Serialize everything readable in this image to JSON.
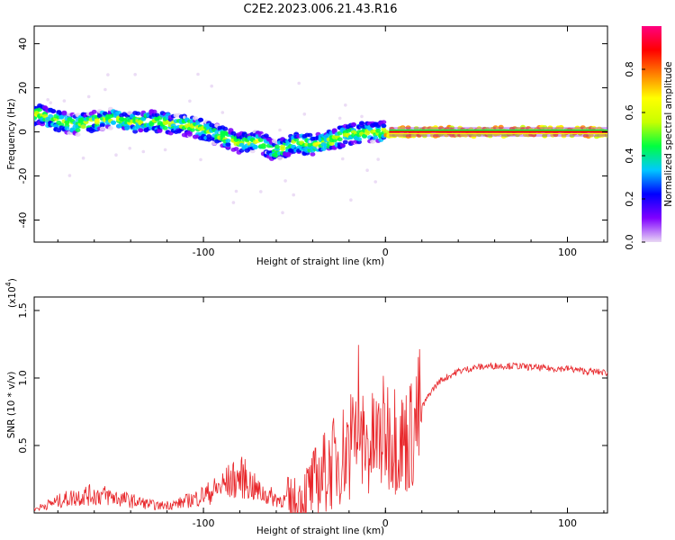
{
  "page_title": "C2E2.2023.006.21.43.R16",
  "chart_data": [
    {
      "type": "heatmap",
      "xlabel": "Height of straight line (km)",
      "ylabel": "Frequency (Hz)",
      "xlim": [
        -193,
        122
      ],
      "ylim": [
        -50,
        48
      ],
      "x_ticks": [
        -100,
        0,
        100
      ],
      "x_tick_labels": [
        "-100",
        "0",
        "100"
      ],
      "y_ticks": [
        -40,
        -20,
        0,
        20,
        40
      ],
      "y_tick_labels": [
        "-40",
        "-20",
        "0",
        "20",
        "40"
      ],
      "ridge": {
        "x": [
          -190,
          -180,
          -170,
          -160,
          -150,
          -140,
          -130,
          -120,
          -110,
          -100,
          -90,
          -80,
          -70,
          -60,
          -50,
          -40,
          -30,
          -20,
          -10,
          0,
          10,
          20,
          40,
          60,
          80,
          100,
          122
        ],
        "freq": [
          8,
          5,
          3,
          5,
          6,
          4,
          5,
          4,
          3,
          1,
          -2,
          -5,
          -4,
          -9,
          -5,
          -6,
          -4,
          -1,
          0,
          0,
          0,
          0,
          0,
          0,
          0,
          0,
          0
        ]
      },
      "colorbar": {
        "label": "Normalized spectral amplitude",
        "range": [
          0,
          1
        ],
        "ticks": [
          0.0,
          0.2,
          0.4,
          0.6,
          0.8
        ],
        "tick_labels": [
          "0.0",
          "0.2",
          "0.4",
          "0.6",
          "0.8"
        ],
        "colors": [
          "#e9d8f4",
          "#8000ff",
          "#0000ff",
          "#00c8ff",
          "#00ff40",
          "#c8ff00",
          "#ffff00",
          "#ff8000",
          "#ff0000",
          "#ff0080"
        ]
      }
    },
    {
      "type": "line",
      "xlabel": "Height of straight line (km)",
      "ylabel": "SNR (10 * v/v)",
      "y_multiplier": "(x10",
      "y_multiplier_exp": "4",
      "y_multiplier_close": ")",
      "xlim": [
        -193,
        122
      ],
      "ylim": [
        0,
        1.6
      ],
      "x_ticks": [
        -100,
        0,
        100
      ],
      "x_tick_labels": [
        "-100",
        "0",
        "100"
      ],
      "y_ticks": [
        0.5,
        1.0,
        1.5
      ],
      "y_tick_labels": [
        "0.5",
        "1.0",
        "1.5"
      ],
      "series": [
        {
          "color": "#e8262a",
          "x": [
            -193,
            -185,
            -175,
            -165,
            -155,
            -145,
            -135,
            -125,
            -115,
            -105,
            -95,
            -85,
            -78,
            -70,
            -60,
            -50,
            -45,
            -40,
            -35,
            -30,
            -25,
            -20,
            -15,
            -10,
            -5,
            0,
            5,
            10,
            15,
            20,
            25,
            30,
            40,
            50,
            60,
            70,
            80,
            90,
            100,
            110,
            122
          ],
          "y": [
            0.02,
            0.05,
            0.08,
            0.1,
            0.1,
            0.08,
            0.06,
            0.04,
            0.05,
            0.08,
            0.12,
            0.18,
            0.2,
            0.12,
            0.08,
            0.06,
            0.12,
            0.2,
            0.28,
            0.35,
            0.42,
            0.5,
            0.55,
            0.48,
            0.52,
            0.6,
            0.58,
            0.52,
            0.6,
            0.78,
            0.9,
            0.98,
            1.05,
            1.08,
            1.09,
            1.09,
            1.08,
            1.07,
            1.07,
            1.05,
            1.04
          ]
        }
      ]
    }
  ]
}
